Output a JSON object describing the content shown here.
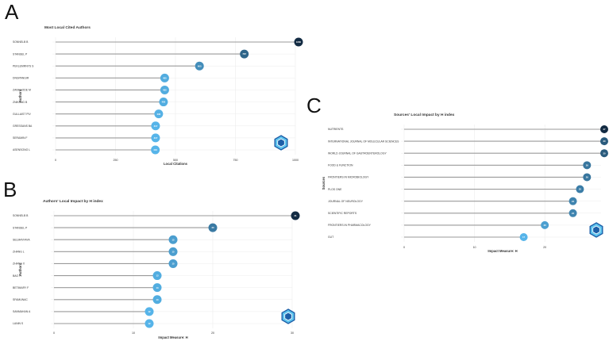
{
  "panels": {
    "A": "A",
    "B": "B",
    "C": "C"
  },
  "colors": {
    "low": "#56b4e9",
    "high": "#132b43",
    "stem": "#9a9a9a",
    "grid": "#ececec",
    "text": "#333333",
    "logo_light": "#5ec4ee",
    "logo_dark": "#1d5fa8"
  },
  "chart_data": [
    {
      "type": "lollipop",
      "title": "Most Local Cited Authors",
      "xlabel": "Local Citations",
      "ylabel": "Authors",
      "xlim": [
        0,
        1000
      ],
      "xticks": [
        0,
        250,
        500,
        750,
        1000
      ],
      "categories": [
        "SONNELB B",
        "STANSEL P",
        "PEKLEMRNYS S",
        "DNGPANGIR",
        "ZANAGODE M",
        "ZNIKANG B",
        "GULLAIST PIV",
        "GRESSANS BA",
        "SERAMIN F",
        "ASENSONO L"
      ],
      "values": [
        1060,
        787,
        600,
        455,
        455,
        450,
        430,
        417,
        417,
        416
      ],
      "value_labels": [
        "1060",
        "787",
        "600",
        "455",
        "455",
        "450",
        "430",
        "417",
        "417",
        "416"
      ]
    },
    {
      "type": "lollipop",
      "title": "Authors' Local Impact by H index",
      "xlabel": "Impact Measure: H",
      "ylabel": "Authors",
      "xlim": [
        0,
        30
      ],
      "xticks": [
        0,
        10,
        20,
        30
      ],
      "categories": [
        "SONNELB B",
        "STANSEL P",
        "SELMAYFAYA",
        "ZHANG L",
        "ZHANG X",
        "BAO H",
        "BETIMARY F",
        "SFAMUNAC",
        "SANMAHAN A",
        "LANIN S"
      ],
      "values": [
        31,
        20,
        15,
        15,
        15,
        13,
        13,
        13,
        12,
        12
      ],
      "value_labels": [
        "31",
        "20",
        "15",
        "15",
        "15",
        "13",
        "13",
        "13",
        "12",
        "12"
      ]
    },
    {
      "type": "lollipop",
      "title": "Sources' Local Impact by H index",
      "xlabel": "Impact Measure: H",
      "ylabel": "Sources",
      "xlim": [
        0,
        28
      ],
      "xticks": [
        0,
        10,
        20
      ],
      "categories": [
        "NUTRIENTS",
        "INTERNATIONAL JOURNAL OF MOLECULAR SCIENCES",
        "WORLD JOURNAL OF GASTROENTEROLOGY",
        "FOOD & FUNCTION",
        "FRONTIERS IN MICROBIOLOGY",
        "PLOS ONE",
        "JOURNAL OF NEUROLOGY",
        "SCIENTIFIC REPORTS",
        "FRONTIERS IN PHARMACOLOGY",
        "GUT"
      ],
      "values": [
        37,
        30,
        30,
        26,
        26,
        25,
        24,
        24,
        20,
        17
      ],
      "value_labels": [
        "37",
        "30",
        "30",
        "26",
        "26",
        "25",
        "24",
        "24",
        "20",
        "17"
      ]
    }
  ]
}
